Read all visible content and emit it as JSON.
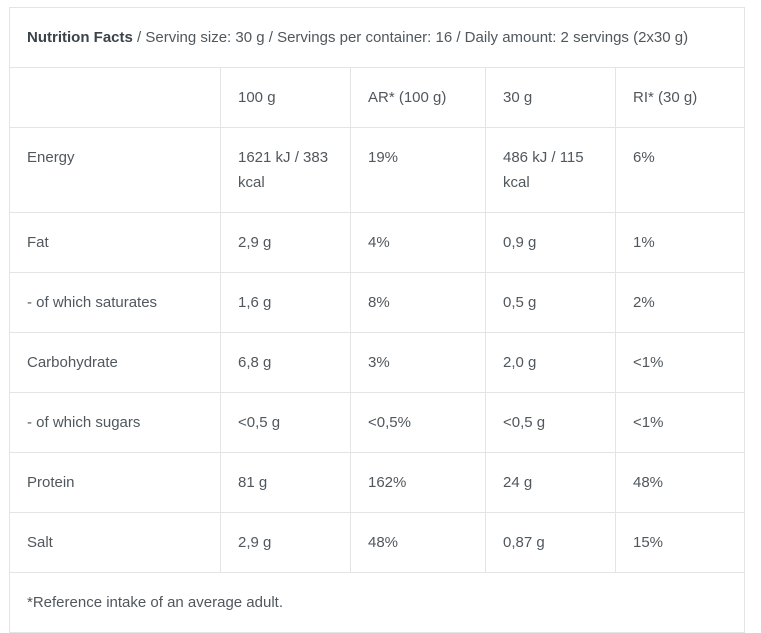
{
  "header": {
    "title": "Nutrition Facts",
    "details": "/ Serving size: 30 g / Servings per container: 16 / Daily amount: 2 servings (2x30 g)"
  },
  "table": {
    "columns": [
      "",
      "100 g",
      "AR* (100 g)",
      "30 g",
      "RI* (30 g)"
    ],
    "rows": [
      {
        "label": "Energy",
        "per_100g": "1621 kJ / 383 kcal",
        "ar_100g": "19%",
        "per_30g": "486 kJ / 115 kcal",
        "ri_30g": "6%"
      },
      {
        "label": "Fat",
        "per_100g": "2,9 g",
        "ar_100g": "4%",
        "per_30g": "0,9 g",
        "ri_30g": "1%"
      },
      {
        "label": "- of which saturates",
        "per_100g": "1,6 g",
        "ar_100g": "8%",
        "per_30g": "0,5 g",
        "ri_30g": "2%"
      },
      {
        "label": "Carbohydrate",
        "per_100g": "6,8 g",
        "ar_100g": "3%",
        "per_30g": "2,0 g",
        "ri_30g": "<1%"
      },
      {
        "label": "- of which sugars",
        "per_100g": "<0,5 g",
        "ar_100g": "<0,5%",
        "per_30g": "<0,5 g",
        "ri_30g": "<1%"
      },
      {
        "label": "Protein",
        "per_100g": "81 g",
        "ar_100g": "162%",
        "per_30g": "24 g",
        "ri_30g": "48%"
      },
      {
        "label": "Salt",
        "per_100g": "2,9 g",
        "ar_100g": "48%",
        "per_30g": "0,87 g",
        "ri_30g": "15%"
      }
    ],
    "footnote": "*Reference intake of an average adult."
  },
  "colors": {
    "border": "#e2e4e6",
    "label_text": "#3b434a",
    "value_text": "#50575d",
    "background": "#ffffff"
  }
}
